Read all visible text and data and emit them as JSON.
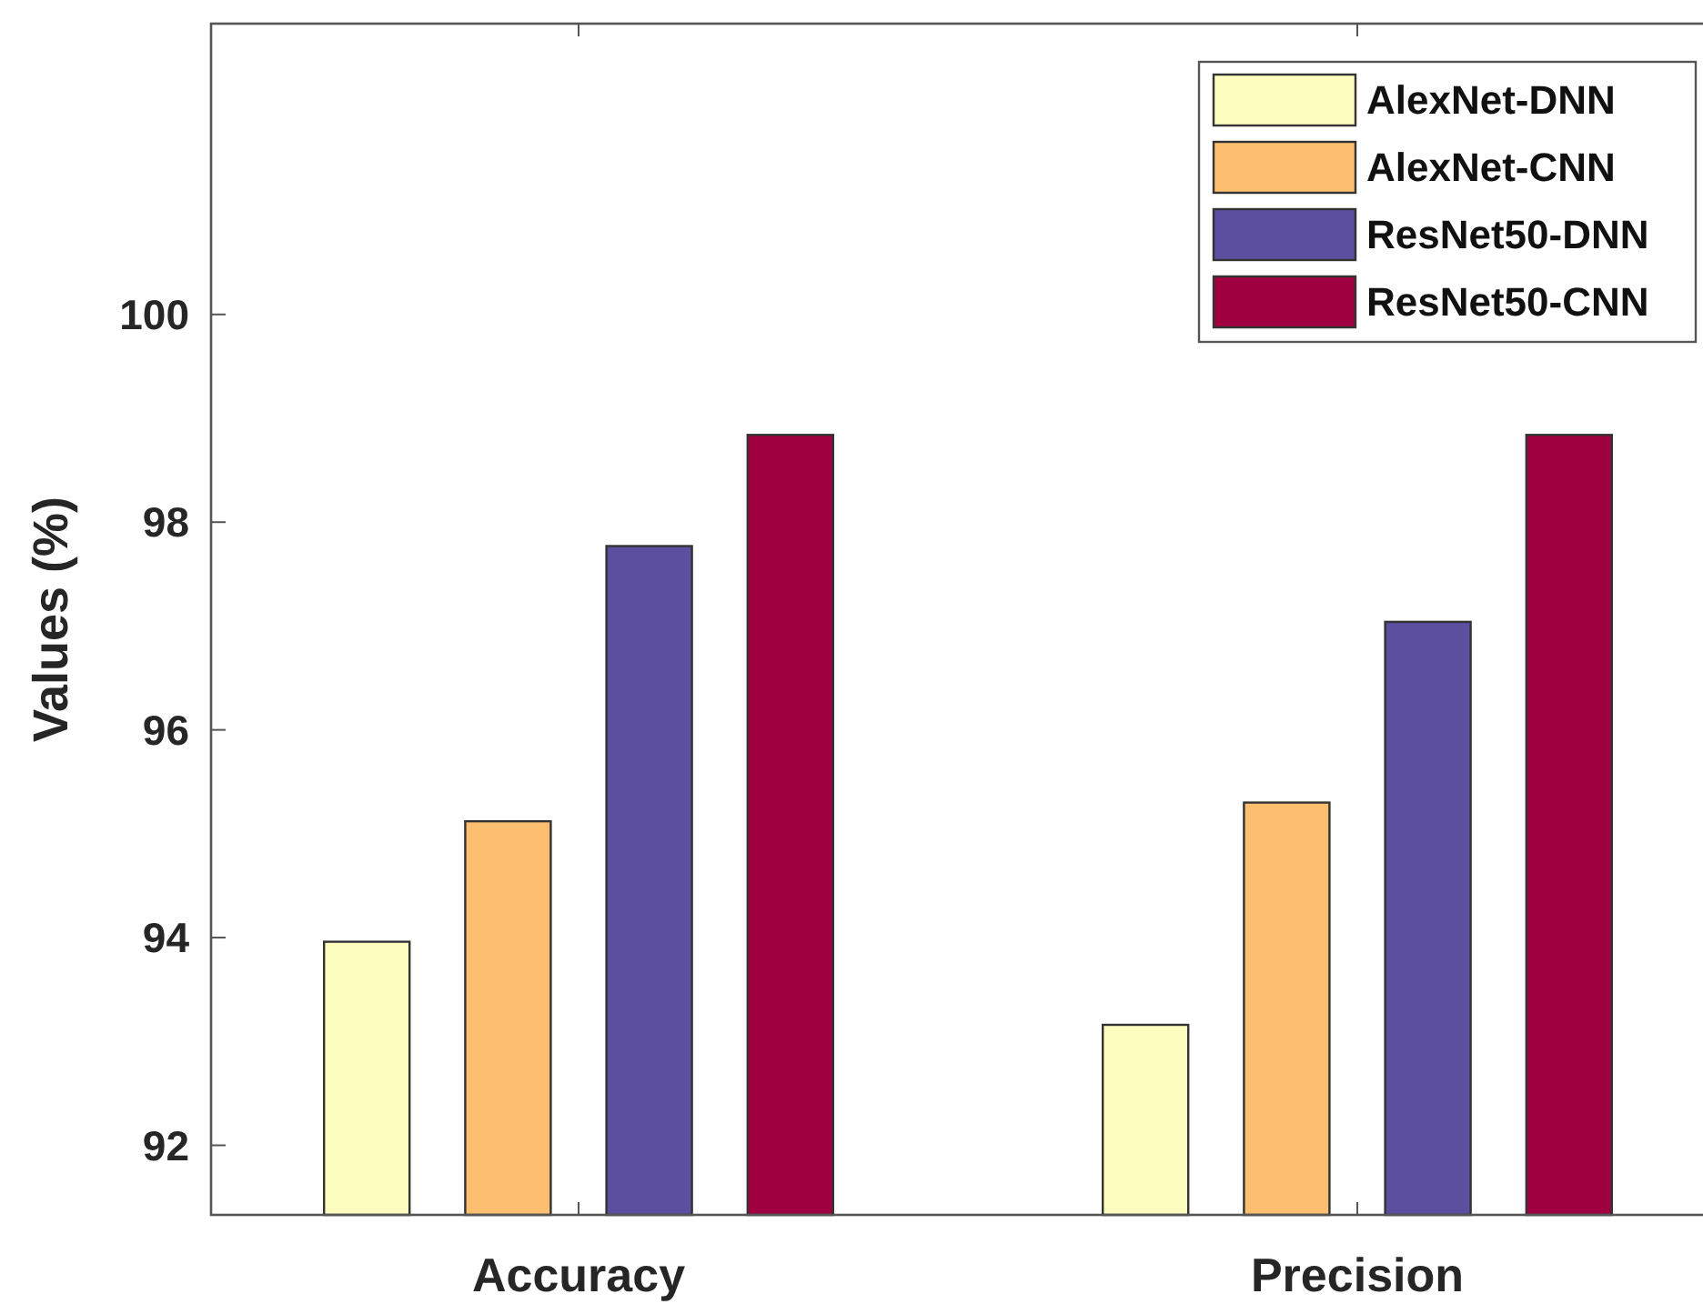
{
  "chart_data": {
    "type": "bar",
    "ylabel": "Values (%)",
    "categories": [
      "Accuracy",
      "Precision"
    ],
    "series": [
      {
        "name": "AlexNet-DNN",
        "color": "#fdfdbf",
        "values": [
          93.96,
          93.16
        ]
      },
      {
        "name": "AlexNet-CNN",
        "color": "#fbbf6f",
        "values": [
          95.12,
          95.3
        ]
      },
      {
        "name": "ResNet50-DNN",
        "color": "#5c4f9f",
        "values": [
          97.77,
          97.04
        ]
      },
      {
        "name": "ResNet50-CNN",
        "color": "#9f003f",
        "values": [
          98.84,
          98.84
        ]
      }
    ],
    "ylim": [
      91.33,
      102.8
    ],
    "yticks": [
      92,
      94,
      96,
      98,
      100
    ],
    "legend": "top right",
    "grid": false
  }
}
